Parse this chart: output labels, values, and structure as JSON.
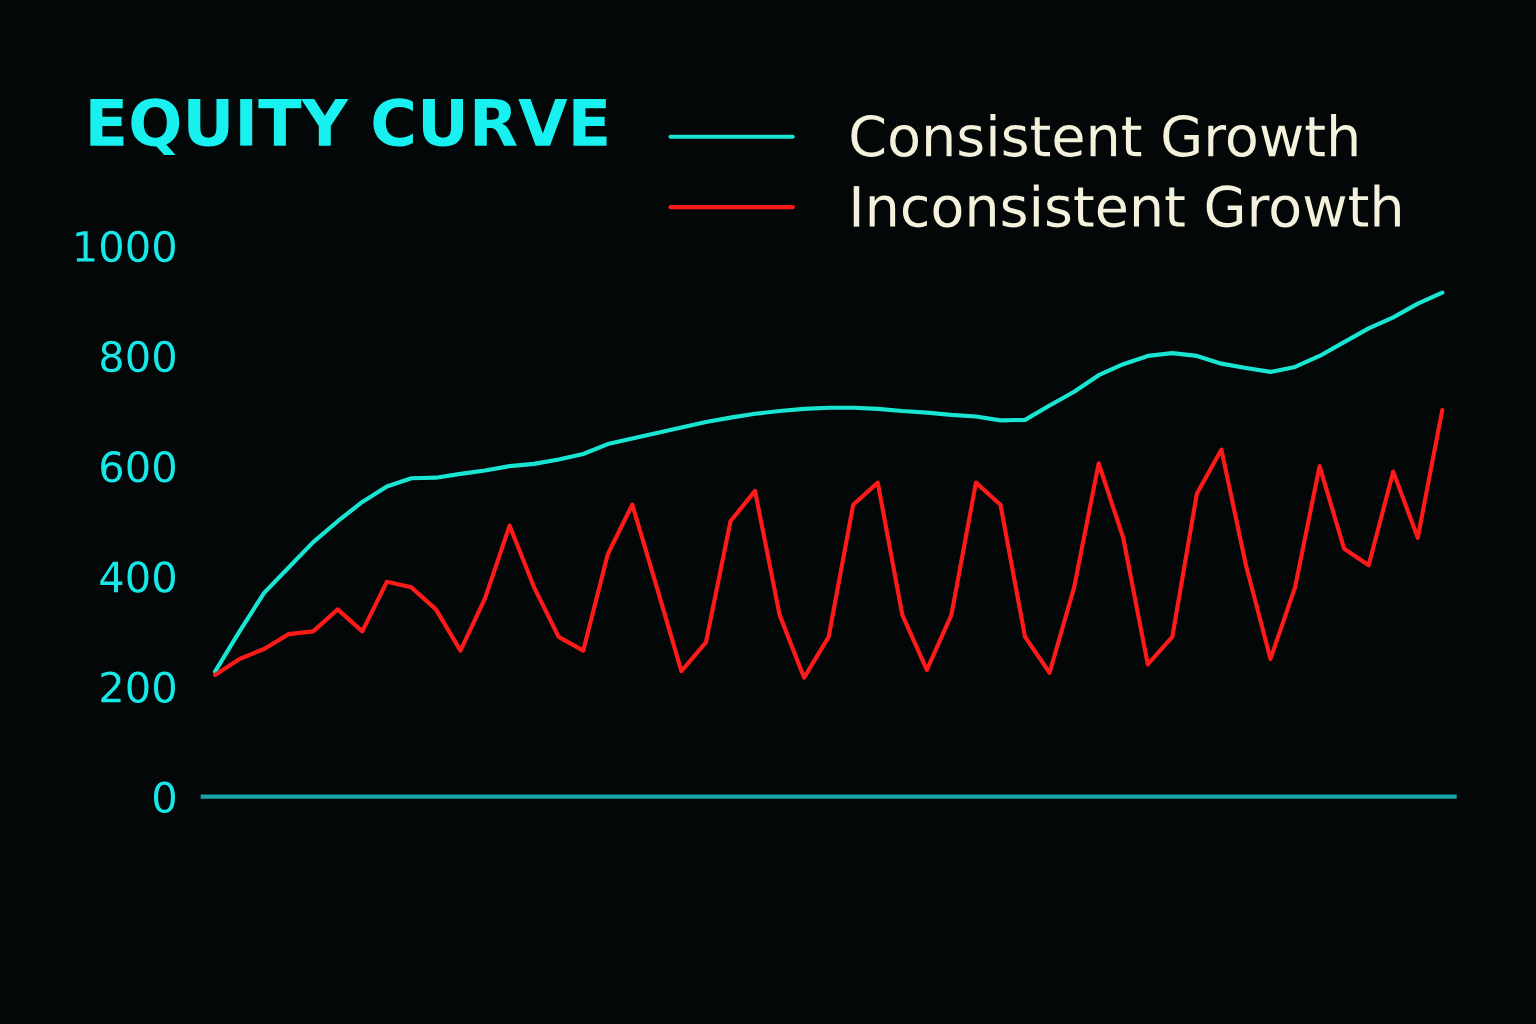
{
  "chart_data": {
    "type": "line",
    "title": "EQUITY CURVE",
    "categories": [
      null,
      null,
      null,
      null,
      null,
      null,
      null,
      null,
      null,
      null,
      null,
      null,
      null,
      null,
      null,
      null,
      null,
      null,
      null,
      null,
      null,
      null,
      null,
      null,
      null,
      null,
      null,
      null,
      null,
      null,
      null,
      null,
      null,
      null,
      null,
      null,
      null,
      null,
      null,
      null,
      null,
      null,
      null,
      null,
      null,
      null,
      null,
      null,
      null,
      null,
      null
    ],
    "series": [
      {
        "name": "Consistent Growth",
        "color": "#19e6d2",
        "values": [
          227,
          300,
          370,
          416,
          462,
          500,
          535,
          563,
          578,
          579,
          586,
          592,
          600,
          604,
          612,
          622,
          640,
          650,
          660,
          670,
          680,
          688,
          695,
          700,
          704,
          706,
          706,
          704,
          700,
          697,
          693,
          690,
          683,
          684,
          710,
          735,
          765,
          785,
          800,
          805,
          800,
          786,
          778,
          771,
          780,
          800,
          825,
          850,
          870,
          895,
          915
        ]
      },
      {
        "name": "Inconsistent Growth",
        "color": "#ff1a1a",
        "values": [
          221,
          250,
          268,
          295,
          300,
          340,
          300,
          390,
          380,
          340,
          265,
          360,
          492,
          380,
          290,
          265,
          440,
          530,
          380,
          228,
          280,
          500,
          555,
          330,
          216,
          290,
          530,
          570,
          330,
          230,
          330,
          570,
          530,
          290,
          225,
          380,
          605,
          470,
          240,
          290,
          550,
          630,
          420,
          250,
          380,
          600,
          450,
          420,
          590,
          470,
          702
        ]
      }
    ],
    "ylim": [
      0,
      1000
    ],
    "yticks": [
      0,
      200,
      400,
      600,
      800,
      1000
    ],
    "tick_labels": "y",
    "grid": false,
    "legend": "top right",
    "line_style": "solid",
    "marker": "none"
  }
}
